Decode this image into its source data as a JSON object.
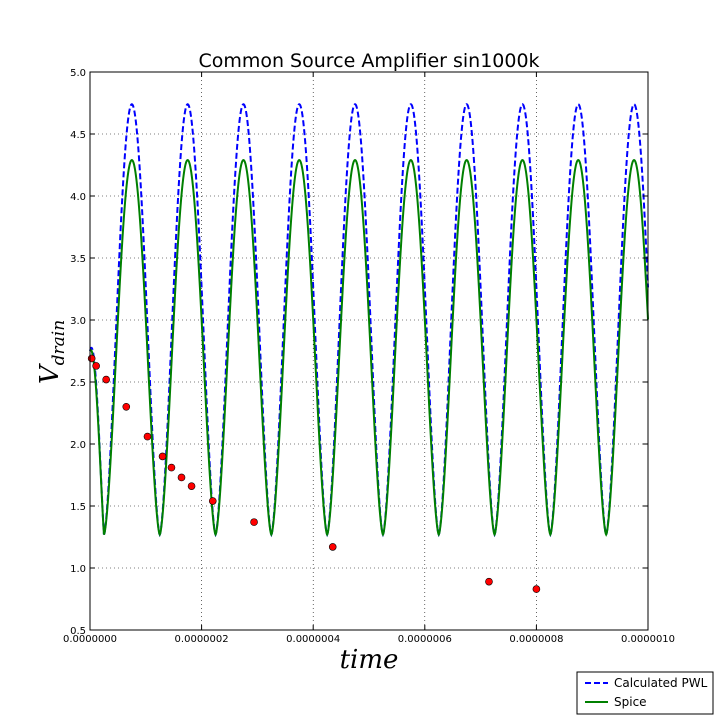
{
  "chart_data": {
    "type": "line",
    "title": "Common Source Amplifier  sin1000k",
    "xlabel": "time",
    "ylabel": "V",
    "ylabel_subscript": "drain",
    "xlim": [
      0,
      1e-06
    ],
    "ylim": [
      0.5,
      5.0
    ],
    "grid": true,
    "legend_placement": "below-right",
    "x_tick_labels": [
      "0.0000000",
      "0.0000002",
      "0.0000004",
      "0.0000006",
      "0.0000008",
      "0.0000010"
    ],
    "x_ticks": [
      0,
      2e-07,
      4e-07,
      6e-07,
      8e-07,
      1e-06
    ],
    "y_tick_labels": [
      "0.5",
      "1.0",
      "1.5",
      "2.0",
      "2.5",
      "3.0",
      "3.5",
      "4.0",
      "4.5",
      "5.0"
    ],
    "y_ticks": [
      0.5,
      1.0,
      1.5,
      2.0,
      2.5,
      3.0,
      3.5,
      4.0,
      4.5,
      5.0
    ],
    "series": [
      {
        "name": "Calculated PWL",
        "style": "dashed",
        "color": "#0000ff",
        "frequency_hz": 10000000,
        "min": 1.27,
        "max": 4.74,
        "first_peak_x": 7.5e-08,
        "start_y": 2.75
      },
      {
        "name": "Spice",
        "style": "solid",
        "color": "#008000",
        "frequency_hz": 10000000,
        "min": 1.27,
        "max": 4.29,
        "first_peak_x": 7.5e-08,
        "start_y": 2.75
      },
      {
        "style": "markers",
        "color": "#ff0000",
        "points": [
          {
            "x": 3e-09,
            "y": 2.69
          },
          {
            "x": 1.1e-08,
            "y": 2.63
          },
          {
            "x": 2.9e-08,
            "y": 2.52
          },
          {
            "x": 6.5e-08,
            "y": 2.3
          },
          {
            "x": 1.03e-07,
            "y": 2.06
          },
          {
            "x": 1.3e-07,
            "y": 1.9
          },
          {
            "x": 1.46e-07,
            "y": 1.81
          },
          {
            "x": 1.64e-07,
            "y": 1.73
          },
          {
            "x": 1.82e-07,
            "y": 1.66
          },
          {
            "x": 2.2e-07,
            "y": 1.54
          },
          {
            "x": 2.94e-07,
            "y": 1.37
          },
          {
            "x": 4.35e-07,
            "y": 1.17
          },
          {
            "x": 7.15e-07,
            "y": 0.89
          },
          {
            "x": 8e-07,
            "y": 0.83
          }
        ]
      }
    ]
  }
}
